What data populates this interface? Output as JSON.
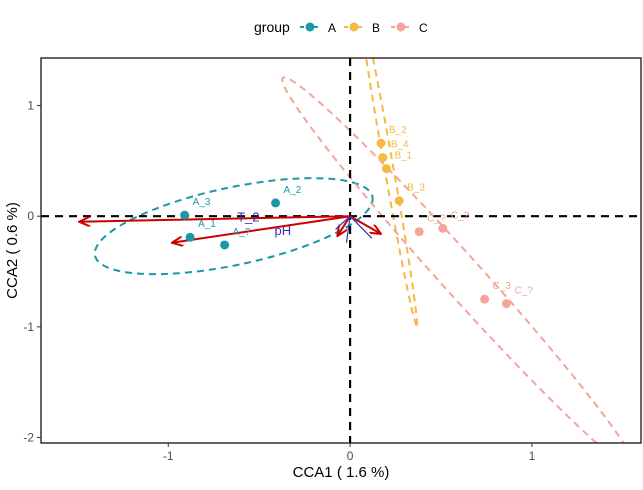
{
  "chart_data": {
    "type": "scatter",
    "subtype": "CCA ordination biplot",
    "title": "",
    "xlabel": "CCA1 ( 1.6 %)",
    "ylabel": "CCA2 ( 0.6 %)",
    "xlim": [
      -1.7,
      1.6
    ],
    "ylim": [
      -2.05,
      1.43
    ],
    "xticks": [
      -1,
      0,
      1
    ],
    "yticks": [
      -2,
      -1,
      0,
      1
    ],
    "reference_lines": {
      "x": 0,
      "y": 0
    },
    "legend": {
      "title": "group",
      "position": "top",
      "entries": [
        {
          "label": "A",
          "color": "#1b98a8"
        },
        {
          "label": "B",
          "color": "#f4b942"
        },
        {
          "label": "C",
          "color": "#f4a49a"
        }
      ]
    },
    "series": [
      {
        "name": "A",
        "color": "#1b98a8",
        "points": [
          {
            "label": "A_1",
            "x": -0.88,
            "y": -0.19
          },
          {
            "label": "A_2",
            "x": -0.41,
            "y": 0.12
          },
          {
            "label": "A_3",
            "x": -0.91,
            "y": 0.01
          },
          {
            "label": "A_?",
            "x": -0.69,
            "y": -0.26
          }
        ],
        "ellipse": {
          "cx": -0.64,
          "cy": -0.09,
          "rx": 0.78,
          "ry": 0.35,
          "angle": 12
        }
      },
      {
        "name": "B",
        "color": "#f4b942",
        "points": [
          {
            "label": "B_1",
            "x": 0.2,
            "y": 0.43
          },
          {
            "label": "B_2",
            "x": 0.17,
            "y": 0.66
          },
          {
            "label": "B_3",
            "x": 0.27,
            "y": 0.14
          },
          {
            "label": "B_4",
            "x": 0.18,
            "y": 0.53
          }
        ],
        "ellipse": {
          "cx": 0.21,
          "cy": 0.47,
          "rx": 0.9,
          "ry": 0.04,
          "angle": -80
        }
      },
      {
        "name": "C",
        "color": "#f4a49a",
        "points": [
          {
            "label": "C_?",
            "x": 0.38,
            "y": -0.14
          },
          {
            "label": "C_?",
            "x": 0.51,
            "y": -0.11
          },
          {
            "label": "C_3",
            "x": 0.74,
            "y": -0.75
          },
          {
            "label": "C_?",
            "x": 0.86,
            "y": -0.79
          }
        ],
        "ellipse": {
          "cx": 0.6,
          "cy": -0.52,
          "rx": 1.45,
          "ry": 0.18,
          "angle": -48
        }
      }
    ],
    "vectors": [
      {
        "label": "",
        "x": -1.49,
        "y": -0.05,
        "color": "#cc0000"
      },
      {
        "label": "pH",
        "x": -0.98,
        "y": -0.24,
        "color": "#cc0000"
      },
      {
        "label": "T_2",
        "x": 0,
        "y": 0,
        "color": "#cc0000"
      },
      {
        "label": "",
        "x": 0.17,
        "y": -0.16,
        "color": "#cc0000"
      },
      {
        "label": "",
        "x": -0.07,
        "y": -0.18,
        "color": "#cc0000"
      }
    ]
  },
  "annotations": [
    {
      "text": "T_2",
      "x": -0.56,
      "y": -0.05,
      "color": "#3a2fb8"
    },
    {
      "text": "pH",
      "x": -0.37,
      "y": -0.17,
      "color": "#3a2fb8"
    }
  ]
}
